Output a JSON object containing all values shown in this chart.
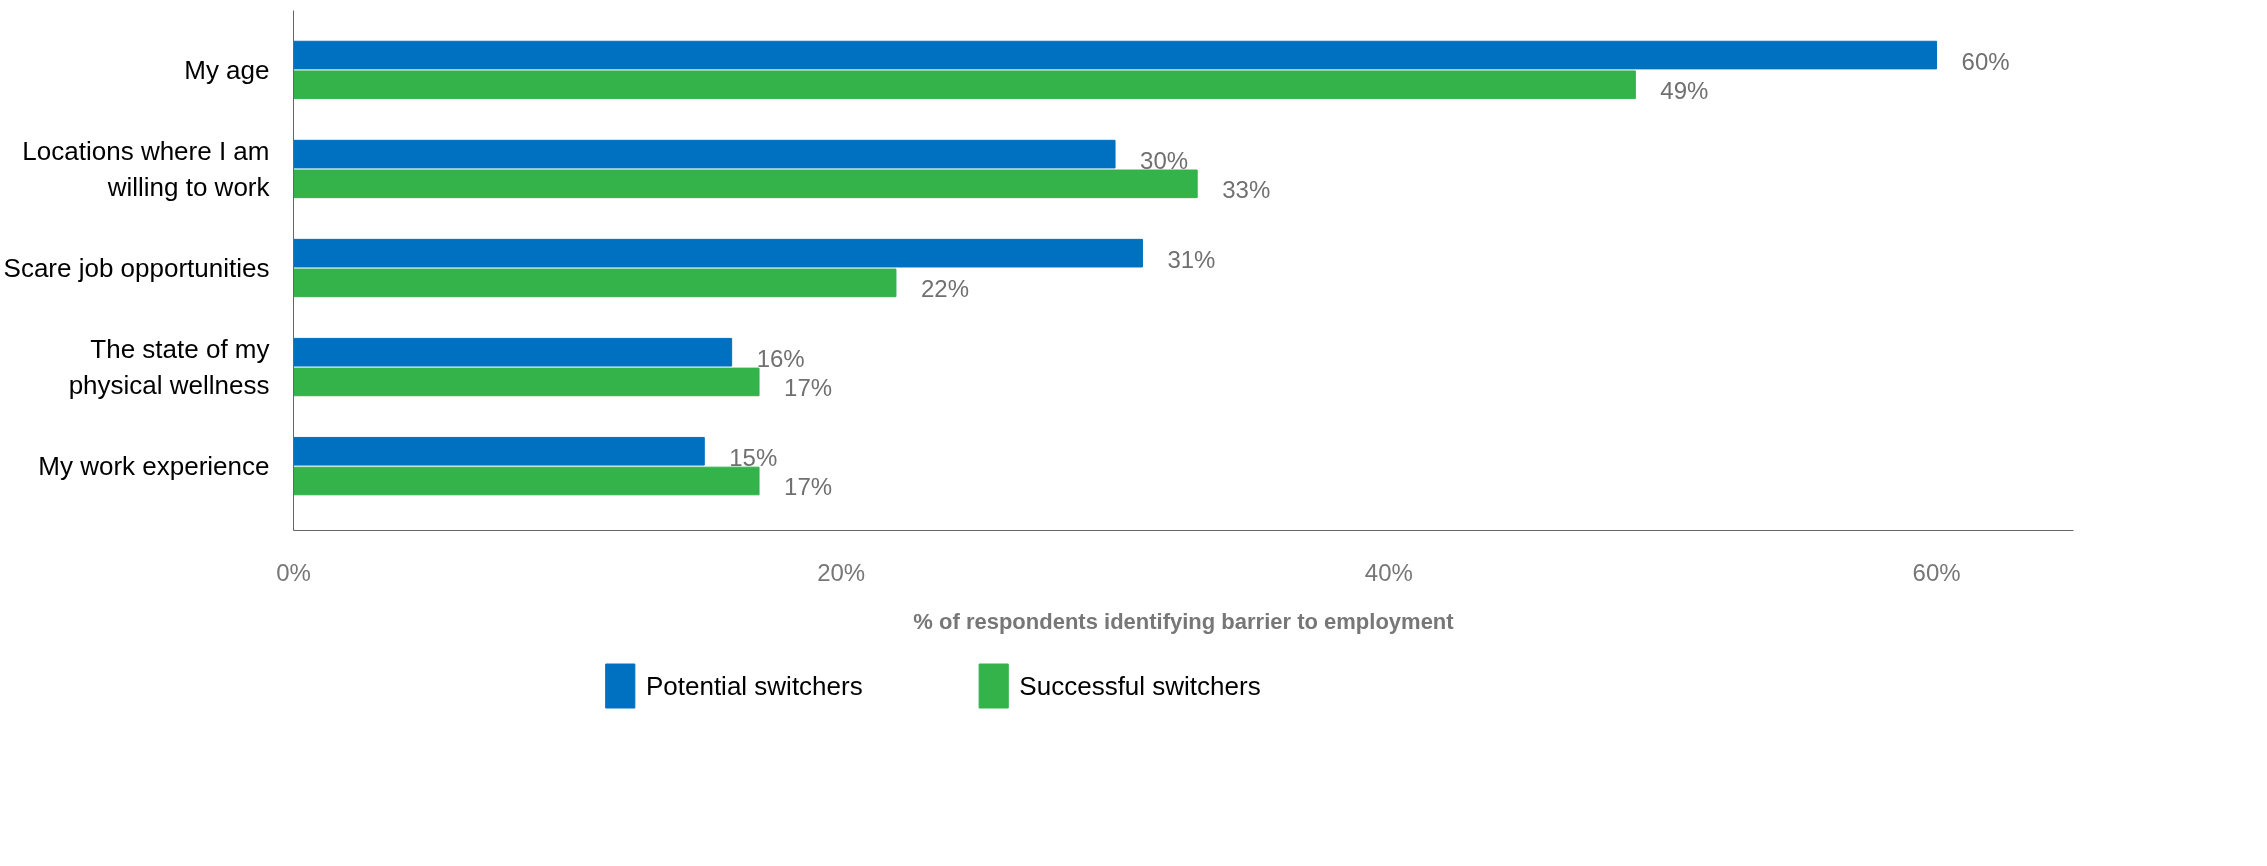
{
  "chart_data": {
    "type": "bar",
    "orientation": "horizontal",
    "xlabel": "% of respondents identifying barrier to employment",
    "categories": [
      "My age",
      "Locations where I am willing to work",
      "Scare job opportunities",
      "The state of my physical wellness",
      "My work experience"
    ],
    "series": [
      {
        "name": "Potential switchers",
        "color": "#0070c0",
        "values": [
          60,
          30,
          31,
          16,
          15
        ]
      },
      {
        "name": "Successful switchers",
        "color": "#33b34a",
        "values": [
          49,
          33,
          22,
          17,
          17
        ]
      }
    ],
    "xlim": [
      0,
      65
    ],
    "xticks": [
      {
        "value": 0,
        "label": "0%"
      },
      {
        "value": 20,
        "label": "20%"
      },
      {
        "value": 40,
        "label": "40%"
      },
      {
        "value": 60,
        "label": "60%"
      }
    ],
    "value_labels": [
      [
        "60%",
        "30%",
        "31%",
        "16%",
        "15%"
      ],
      [
        "49%",
        "33%",
        "22%",
        "17%",
        "17%"
      ]
    ],
    "grid": false,
    "legend": "bottom"
  }
}
